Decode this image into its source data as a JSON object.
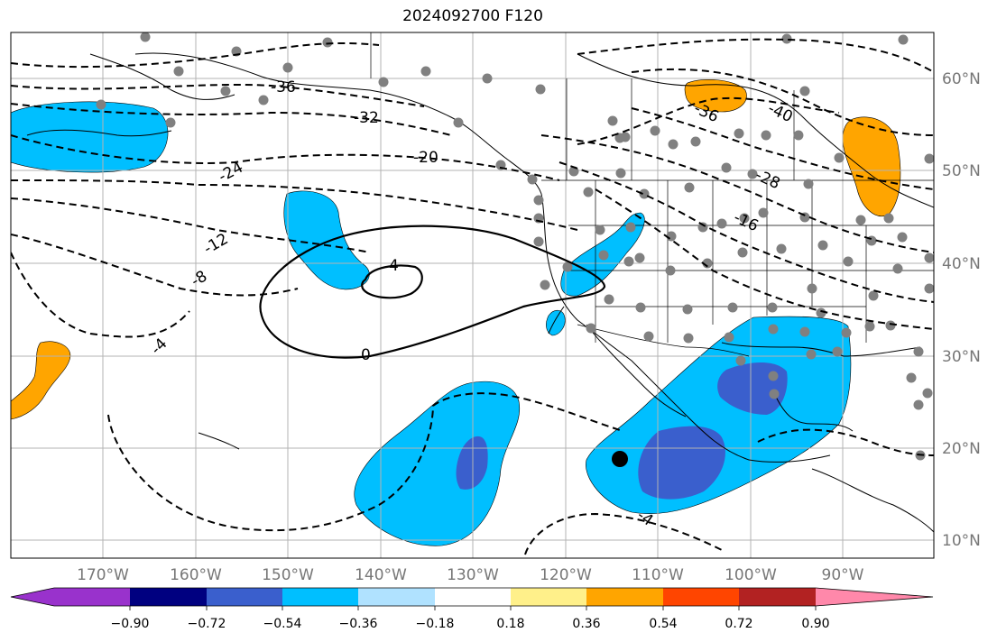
{
  "title": "2024092700 F120",
  "lon_labels": [
    "170°W",
    "160°W",
    "150°W",
    "140°W",
    "130°W",
    "120°W",
    "110°W",
    "100°W",
    "90°W"
  ],
  "lat_labels": [
    "60°N",
    "50°N",
    "40°N",
    "30°N",
    "20°N",
    "10°N"
  ],
  "contour_labels": [
    "-36",
    "-32",
    "-24",
    "-20",
    "-12",
    "-8",
    "-4",
    "0",
    "4",
    "-4",
    "-36",
    "-40",
    "-28",
    "-16"
  ],
  "colorbar": {
    "tick_labels": [
      "−0.90",
      "−0.72",
      "−0.54",
      "−0.36",
      "−0.18",
      "0.18",
      "0.36",
      "0.54",
      "0.72",
      "0.90"
    ],
    "colors": [
      "#9932cc",
      "#000080",
      "#3a5fcd",
      "#00bfff",
      "#b0e2ff",
      "#ffffff",
      "#fff08a",
      "#ffa500",
      "#ff4500",
      "#b22222",
      "#ff88aa"
    ]
  },
  "shading_colors": {
    "light_blue": "#00bfff",
    "dark_blue": "#3a5fcd",
    "orange": "#ffa500"
  },
  "marker_color": "#000000",
  "station_color": "#808080"
}
